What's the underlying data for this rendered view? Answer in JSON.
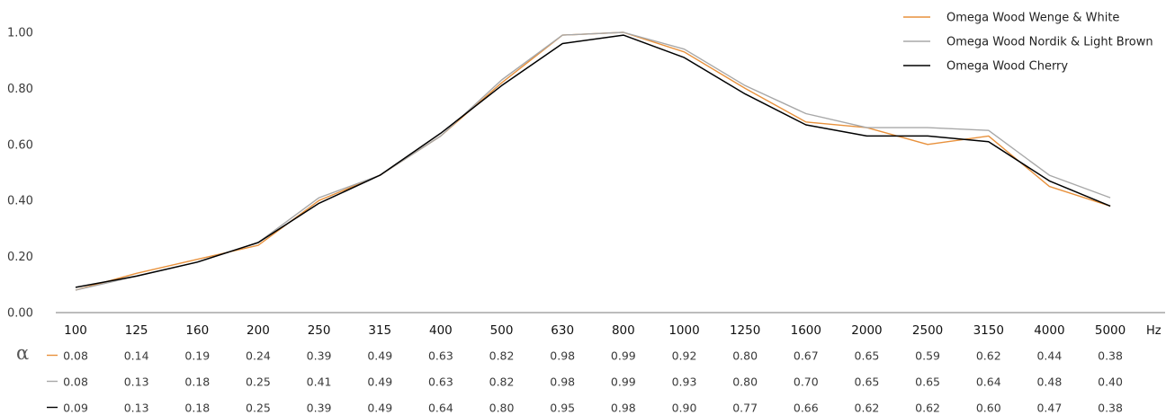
{
  "chart_data": {
    "type": "line",
    "x": [
      "100",
      "125",
      "160",
      "200",
      "250",
      "315",
      "400",
      "500",
      "630",
      "800",
      "1000",
      "1250",
      "1600",
      "2000",
      "2500",
      "3150",
      "4000",
      "5000"
    ],
    "x_unit": "Hz",
    "y_symbol": "α",
    "ylim": [
      0,
      1.0
    ],
    "y_ticks": [
      "0.00",
      "0.20",
      "0.40",
      "0.60",
      "0.80",
      "1.00"
    ],
    "grid": false,
    "legend_position": "top-right",
    "series": [
      {
        "name": "Omega Wood Wenge & White",
        "color": "#e8913c",
        "plotted": [
          0.08,
          0.14,
          0.19,
          0.24,
          0.4,
          0.49,
          0.63,
          0.82,
          0.99,
          1.0,
          0.93,
          0.8,
          0.68,
          0.66,
          0.6,
          0.63,
          0.45,
          0.38
        ],
        "table": [
          "0.08",
          "0.14",
          "0.19",
          "0.24",
          "0.39",
          "0.49",
          "0.63",
          "0.82",
          "0.98",
          "0.99",
          "0.92",
          "0.80",
          "0.67",
          "0.65",
          "0.59",
          "0.62",
          "0.44",
          "0.38"
        ]
      },
      {
        "name": "Omega Wood Nordik & Light Brown",
        "color": "#a8a8a8",
        "plotted": [
          0.08,
          0.13,
          0.18,
          0.25,
          0.41,
          0.49,
          0.63,
          0.83,
          0.99,
          1.0,
          0.94,
          0.81,
          0.71,
          0.66,
          0.66,
          0.65,
          0.49,
          0.41
        ],
        "table": [
          "0.08",
          "0.13",
          "0.18",
          "0.25",
          "0.41",
          "0.49",
          "0.63",
          "0.82",
          "0.98",
          "0.99",
          "0.93",
          "0.80",
          "0.70",
          "0.65",
          "0.65",
          "0.64",
          "0.48",
          "0.40"
        ]
      },
      {
        "name": "Omega Wood Cherry",
        "color": "#000000",
        "plotted": [
          0.09,
          0.13,
          0.18,
          0.25,
          0.39,
          0.49,
          0.64,
          0.81,
          0.96,
          0.99,
          0.91,
          0.78,
          0.67,
          0.63,
          0.63,
          0.61,
          0.47,
          0.38
        ],
        "table": [
          "0.09",
          "0.13",
          "0.18",
          "0.25",
          "0.39",
          "0.49",
          "0.64",
          "0.80",
          "0.95",
          "0.98",
          "0.90",
          "0.77",
          "0.66",
          "0.62",
          "0.62",
          "0.60",
          "0.47",
          "0.38"
        ]
      }
    ]
  }
}
